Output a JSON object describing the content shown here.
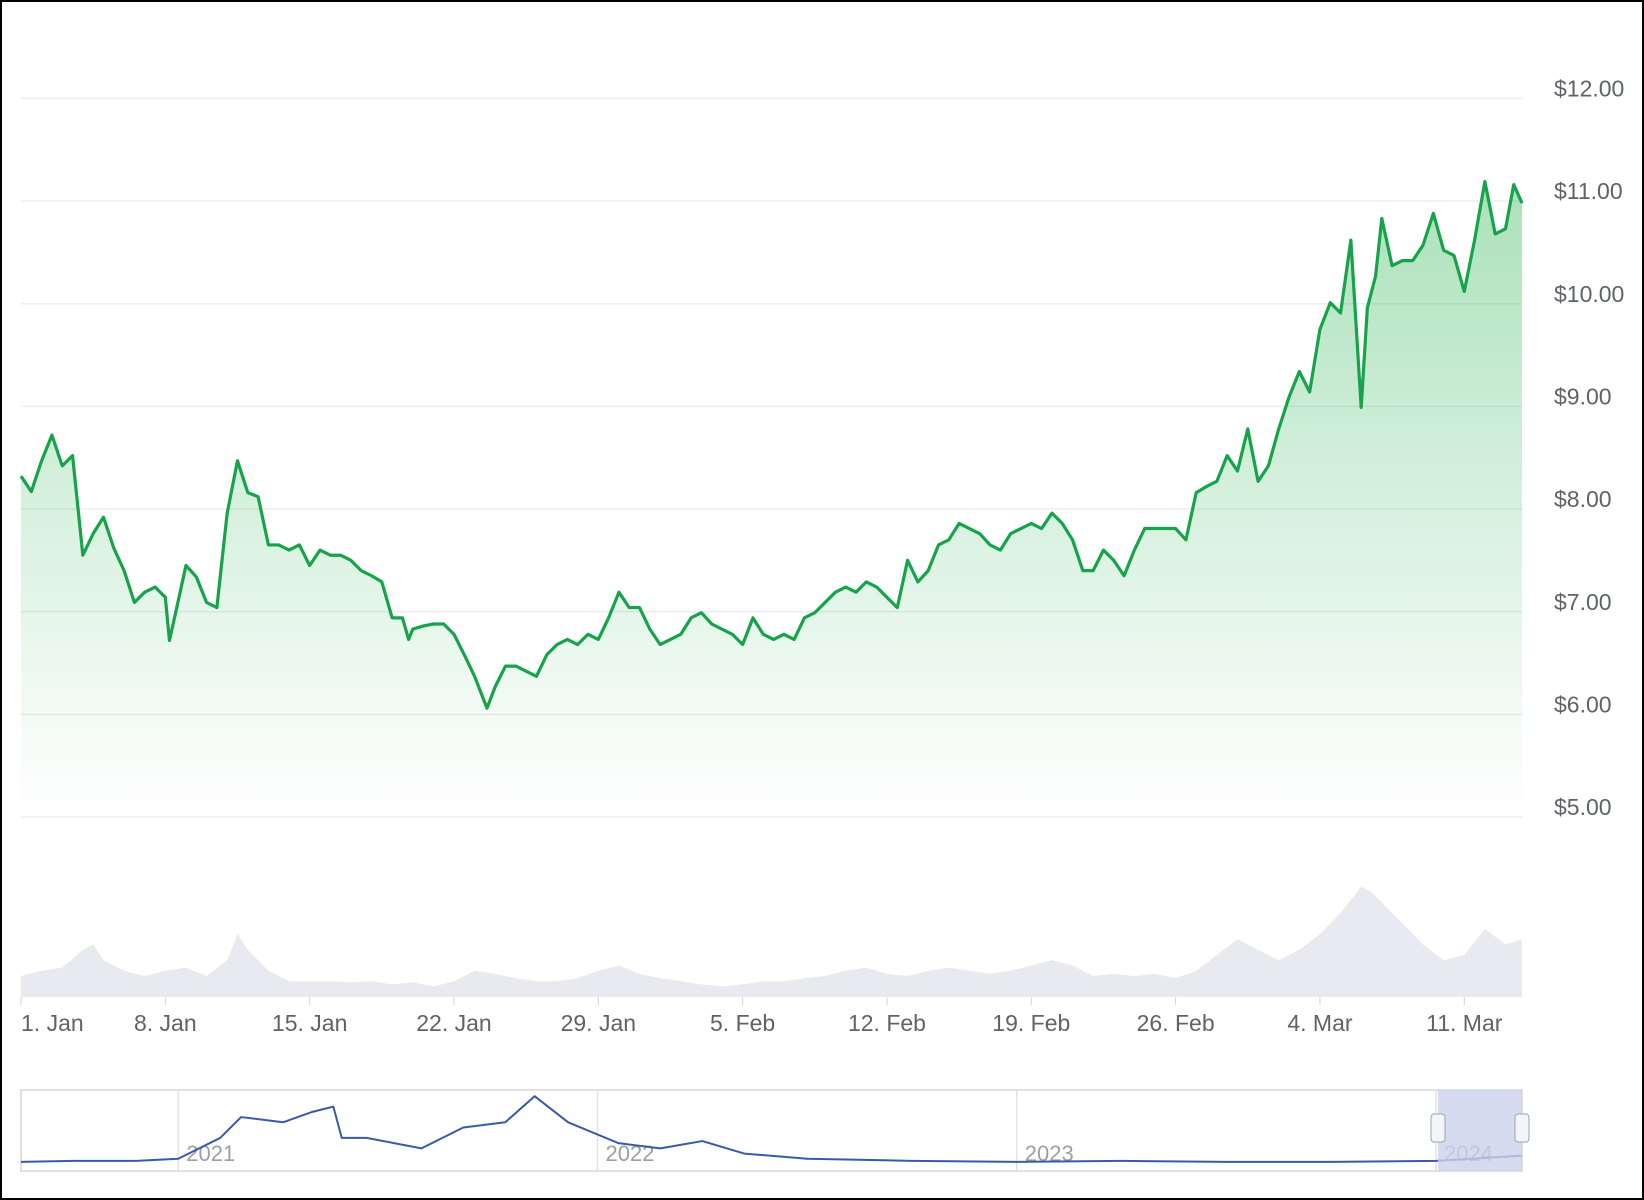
{
  "chart_data": [
    {
      "type": "line",
      "color": "#16a34a",
      "x": [
        0,
        0.5,
        1,
        1.5,
        2,
        2.5,
        3,
        3.5,
        4,
        4.5,
        5,
        5.5,
        6,
        6.5,
        7,
        7.2,
        7.5,
        8,
        8.5,
        9,
        9.5,
        10,
        10.5,
        11,
        11.5,
        12,
        12.5,
        13,
        13.5,
        14,
        14.5,
        15,
        15.5,
        16,
        16.5,
        17,
        17.5,
        18,
        18.5,
        18.8,
        19,
        19.5,
        20,
        20.5,
        21,
        21.5,
        22,
        22.6,
        23,
        23.5,
        24,
        24.5,
        25,
        25.5,
        26,
        26.5,
        27,
        27.5,
        28,
        28.5,
        29,
        29.5,
        30,
        30.5,
        31,
        31.5,
        32,
        32.5,
        33,
        33.5,
        34,
        34.5,
        35,
        35.5,
        36,
        36.5,
        37,
        37.5,
        38,
        38.5,
        39,
        39.5,
        40,
        40.5,
        41,
        41.5,
        42,
        42.5,
        43,
        43.5,
        44,
        44.5,
        45,
        45.5,
        46,
        46.5,
        47,
        47.5,
        48,
        48.5,
        49,
        49.5,
        50,
        50.5,
        51,
        51.5,
        52,
        52.5,
        53,
        53.5,
        54,
        54.5,
        55,
        55.5,
        56,
        56.5,
        57,
        57.5,
        58,
        58.5,
        59,
        59.5,
        60,
        60.5,
        61,
        61.5,
        62,
        62.5,
        63,
        63.5,
        64,
        64.5,
        65,
        65.3,
        65.7,
        66,
        66.5,
        67,
        67.5,
        68,
        68.5,
        69,
        69.5,
        70,
        70.5,
        71,
        71.5,
        72,
        72.4,
        72.8
      ],
      "values": [
        8.32,
        8.17,
        8.47,
        8.72,
        8.42,
        8.52,
        7.55,
        7.76,
        7.92,
        7.62,
        7.4,
        7.09,
        7.19,
        7.24,
        7.14,
        6.72,
        6.99,
        7.45,
        7.34,
        7.09,
        7.04,
        7.96,
        8.47,
        8.16,
        8.12,
        7.65,
        7.65,
        7.6,
        7.65,
        7.45,
        7.6,
        7.55,
        7.55,
        7.5,
        7.4,
        7.35,
        7.29,
        6.94,
        6.94,
        6.73,
        6.83,
        6.86,
        6.88,
        6.88,
        6.78,
        6.58,
        6.37,
        6.06,
        6.27,
        6.47,
        6.47,
        6.42,
        6.37,
        6.58,
        6.68,
        6.73,
        6.68,
        6.78,
        6.73,
        6.94,
        7.19,
        7.04,
        7.04,
        6.83,
        6.68,
        6.73,
        6.78,
        6.94,
        6.99,
        6.88,
        6.83,
        6.78,
        6.68,
        6.94,
        6.78,
        6.73,
        6.78,
        6.73,
        6.94,
        6.99,
        7.09,
        7.19,
        7.24,
        7.19,
        7.29,
        7.24,
        7.14,
        7.04,
        7.5,
        7.29,
        7.4,
        7.65,
        7.7,
        7.86,
        7.81,
        7.76,
        7.65,
        7.6,
        7.76,
        7.81,
        7.86,
        7.81,
        7.96,
        7.86,
        7.7,
        7.4,
        7.4,
        7.6,
        7.5,
        7.35,
        7.6,
        7.81,
        7.81,
        7.81,
        7.81,
        7.7,
        8.16,
        8.22,
        8.27,
        8.52,
        8.37,
        8.78,
        8.27,
        8.42,
        8.78,
        9.09,
        9.34,
        9.14,
        9.75,
        10.01,
        9.91,
        10.62,
        8.99,
        9.96,
        10.27,
        10.83,
        10.37,
        10.42,
        10.42,
        10.57,
        10.88,
        10.52,
        10.47,
        10.12,
        10.62,
        11.19,
        10.68,
        10.73,
        11.16,
        10.98
      ],
      "xlim": [
        0,
        72.8
      ],
      "xticks": [
        {
          "value": 0,
          "label": "1. Jan"
        },
        {
          "value": 7,
          "label": "8. Jan"
        },
        {
          "value": 14,
          "label": "15. Jan"
        },
        {
          "value": 21,
          "label": "22. Jan"
        },
        {
          "value": 28,
          "label": "29. Jan"
        },
        {
          "value": 35,
          "label": "5. Feb"
        },
        {
          "value": 42,
          "label": "12. Feb"
        },
        {
          "value": 49,
          "label": "19. Feb"
        },
        {
          "value": 56,
          "label": "26. Feb"
        },
        {
          "value": 63,
          "label": "4. Mar"
        },
        {
          "value": 70,
          "label": "11. Mar"
        }
      ],
      "ylim": [
        5,
        12.9
      ],
      "yticks": [
        {
          "value": 5,
          "label": "$5.00"
        },
        {
          "value": 6,
          "label": "$6.00"
        },
        {
          "value": 7,
          "label": "$7.00"
        },
        {
          "value": 8,
          "label": "$8.00"
        },
        {
          "value": 9,
          "label": "$9.00"
        },
        {
          "value": 10,
          "label": "$10.00"
        },
        {
          "value": 11,
          "label": "$11.00"
        },
        {
          "value": 12,
          "label": "$12.00"
        }
      ],
      "grid": true
    },
    {
      "type": "area",
      "color": "#e8eaf0",
      "x": [
        0,
        1,
        2,
        3,
        3.5,
        4,
        5,
        6,
        7,
        8,
        9,
        10,
        10.5,
        11,
        12,
        13,
        14,
        15,
        16,
        17,
        18,
        19,
        20,
        21,
        22,
        23,
        24,
        25,
        26,
        27,
        28,
        29,
        30,
        31,
        32,
        33,
        34,
        35,
        36,
        37,
        38,
        39,
        40,
        41,
        42,
        43,
        44,
        45,
        46,
        47,
        48,
        49,
        50,
        51,
        52,
        53,
        54,
        55,
        56,
        57,
        58,
        59,
        60,
        61,
        62,
        63,
        64,
        65,
        65.5,
        66,
        67,
        68,
        69,
        70,
        71,
        72,
        72.8
      ],
      "values": [
        20,
        25,
        28,
        45,
        50,
        35,
        25,
        20,
        25,
        28,
        20,
        35,
        60,
        45,
        25,
        15,
        15,
        15,
        14,
        15,
        12,
        14,
        10,
        15,
        25,
        22,
        18,
        15,
        15,
        18,
        25,
        30,
        22,
        18,
        15,
        12,
        10,
        12,
        15,
        15,
        18,
        20,
        25,
        28,
        22,
        20,
        25,
        28,
        25,
        22,
        25,
        30,
        35,
        30,
        20,
        22,
        20,
        22,
        18,
        25,
        40,
        55,
        45,
        35,
        45,
        60,
        80,
        105,
        100,
        90,
        70,
        50,
        35,
        40,
        65,
        50,
        55
      ],
      "xlim": [
        0,
        72.8
      ],
      "ylim": [
        0,
        120
      ]
    },
    {
      "type": "line",
      "color": "#3a5aa8",
      "x": [
        2020.625,
        2020.75,
        2020.9,
        2021.0,
        2021.1,
        2021.15,
        2021.25,
        2021.32,
        2021.37,
        2021.39,
        2021.45,
        2021.58,
        2021.68,
        2021.78,
        2021.85,
        2021.93,
        2022.05,
        2022.15,
        2022.25,
        2022.35,
        2022.5,
        2022.75,
        2023.0,
        2023.25,
        2023.5,
        2023.75,
        2024.0,
        2024.205
      ],
      "values": [
        2,
        3,
        3,
        5,
        25,
        45,
        40,
        50,
        55,
        25,
        25,
        15,
        35,
        40,
        65,
        40,
        20,
        15,
        22,
        10,
        5,
        3,
        2,
        3,
        2,
        2,
        3,
        8
      ],
      "xlim": [
        2020.625,
        2024.205
      ],
      "ylim": [
        0,
        70
      ],
      "xticks": [
        2021,
        2022,
        2023,
        2024
      ]
    }
  ]
}
